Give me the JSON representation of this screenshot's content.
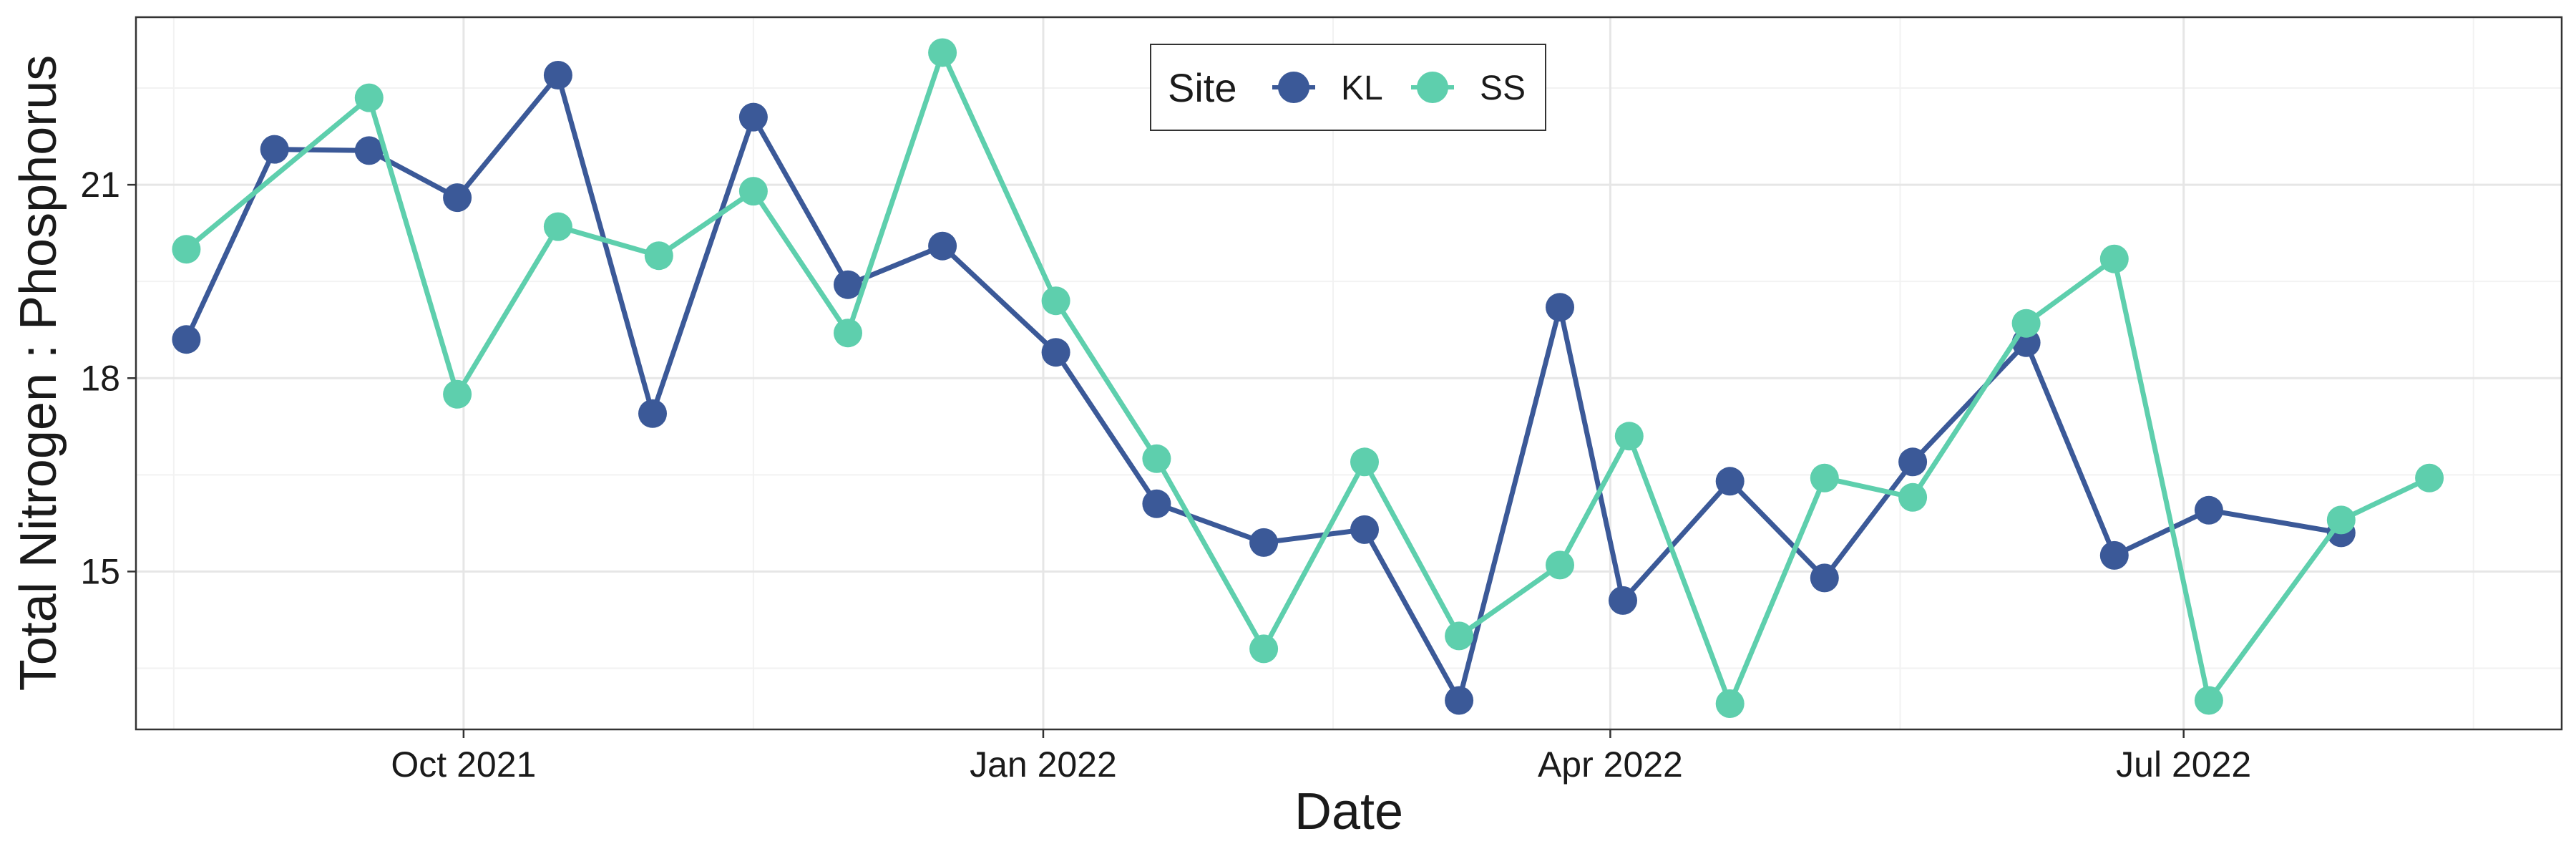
{
  "chart_data": {
    "type": "line",
    "xlabel": "Date",
    "ylabel": "Total Nitrogen : Phosphorus",
    "xlim": [
      "2021-08-10",
      "2022-08-30"
    ],
    "ylim": [
      12.55,
      23.6
    ],
    "x_ticks": [
      {
        "date": "2021-10-01",
        "label": "Oct 2021"
      },
      {
        "date": "2022-01-01",
        "label": "Jan 2022"
      },
      {
        "date": "2022-04-01",
        "label": "Apr 2022"
      },
      {
        "date": "2022-07-01",
        "label": "Jul 2022"
      }
    ],
    "y_ticks": [
      15,
      18,
      21
    ],
    "grid": true,
    "legend": {
      "title": "Site",
      "position": "top-center",
      "entries": [
        {
          "label": "KL",
          "color": "#3b5998"
        },
        {
          "label": "SS",
          "color": "#5ecfad"
        }
      ]
    },
    "series": [
      {
        "name": "KL",
        "color": "#3b5998",
        "points": [
          {
            "x": "2021-08-18",
            "y": 18.6
          },
          {
            "x": "2021-09-01",
            "y": 21.55
          },
          {
            "x": "2021-09-16",
            "y": 21.53
          },
          {
            "x": "2021-09-30",
            "y": 20.8
          },
          {
            "x": "2021-10-16",
            "y": 22.7
          },
          {
            "x": "2021-10-31",
            "y": 17.45
          },
          {
            "x": "2021-11-16",
            "y": 22.05
          },
          {
            "x": "2021-12-01",
            "y": 19.45
          },
          {
            "x": "2021-12-16",
            "y": 20.05
          },
          {
            "x": "2022-01-03",
            "y": 18.4
          },
          {
            "x": "2022-01-19",
            "y": 16.05
          },
          {
            "x": "2022-02-05",
            "y": 15.45
          },
          {
            "x": "2022-02-21",
            "y": 15.65
          },
          {
            "x": "2022-03-08",
            "y": 13.0
          },
          {
            "x": "2022-03-24",
            "y": 19.1
          },
          {
            "x": "2022-04-03",
            "y": 14.55
          },
          {
            "x": "2022-04-20",
            "y": 16.4
          },
          {
            "x": "2022-05-05",
            "y": 14.9
          },
          {
            "x": "2022-05-19",
            "y": 16.7
          },
          {
            "x": "2022-06-06",
            "y": 18.55
          },
          {
            "x": "2022-06-20",
            "y": 15.25
          },
          {
            "x": "2022-07-05",
            "y": 15.95
          },
          {
            "x": "2022-07-26",
            "y": 15.6
          }
        ]
      },
      {
        "name": "SS",
        "color": "#5ecfad",
        "points": [
          {
            "x": "2021-08-18",
            "y": 20.0
          },
          {
            "x": "2021-09-16",
            "y": 22.35
          },
          {
            "x": "2021-09-30",
            "y": 17.75
          },
          {
            "x": "2021-10-16",
            "y": 20.35
          },
          {
            "x": "2021-11-01",
            "y": 19.9
          },
          {
            "x": "2021-11-16",
            "y": 20.9
          },
          {
            "x": "2021-12-01",
            "y": 18.7
          },
          {
            "x": "2021-12-16",
            "y": 23.05
          },
          {
            "x": "2022-01-03",
            "y": 19.2
          },
          {
            "x": "2022-01-19",
            "y": 16.75
          },
          {
            "x": "2022-02-05",
            "y": 13.8
          },
          {
            "x": "2022-02-21",
            "y": 16.7
          },
          {
            "x": "2022-03-08",
            "y": 14.0
          },
          {
            "x": "2022-03-24",
            "y": 15.1
          },
          {
            "x": "2022-04-04",
            "y": 17.1
          },
          {
            "x": "2022-04-20",
            "y": 12.95
          },
          {
            "x": "2022-05-05",
            "y": 16.45
          },
          {
            "x": "2022-05-19",
            "y": 16.15
          },
          {
            "x": "2022-06-06",
            "y": 18.85
          },
          {
            "x": "2022-06-20",
            "y": 19.85
          },
          {
            "x": "2022-07-05",
            "y": 13.0
          },
          {
            "x": "2022-07-26",
            "y": 15.8
          },
          {
            "x": "2022-08-09",
            "y": 16.45
          }
        ]
      }
    ]
  }
}
